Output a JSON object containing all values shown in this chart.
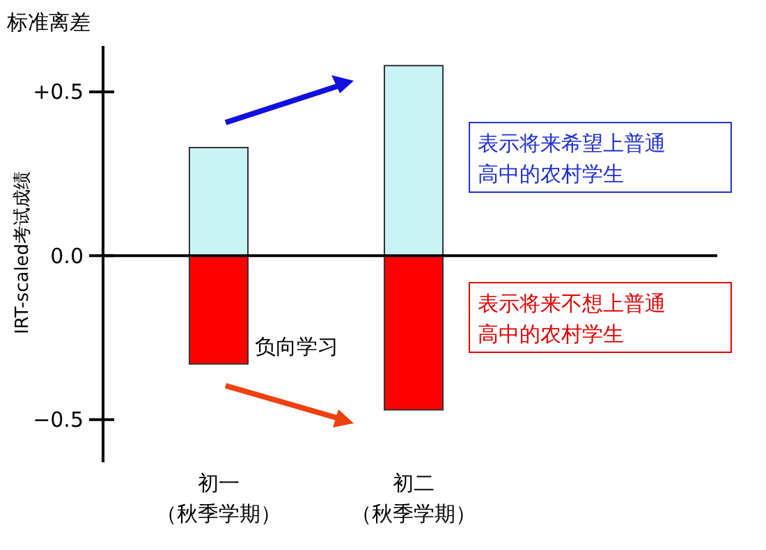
{
  "chart_data": {
    "type": "bar",
    "title": "标准离差",
    "ylabel": "IRT-scaled考试成绩",
    "categories": [
      "初一（秋季学期）",
      "初二（秋季学期）"
    ],
    "stacked": true,
    "series": [
      {
        "name": "表示将来希望上普通高中的农村学生",
        "color": "#c8f4f6",
        "values": [
          0.33,
          0.58
        ]
      },
      {
        "name": "表示将来不想上普通高中的农村学生",
        "color": "#ff0000",
        "values": [
          -0.33,
          -0.47
        ]
      }
    ],
    "ylim": [
      -0.63,
      0.64
    ],
    "yticks": [
      {
        "value": 0.5,
        "label": "+0.5"
      },
      {
        "value": 0,
        "label": "0.0"
      },
      {
        "value": -0.5,
        "label": "−0.5"
      }
    ],
    "legend": "right",
    "annotations": [
      "负向学习"
    ]
  }
}
